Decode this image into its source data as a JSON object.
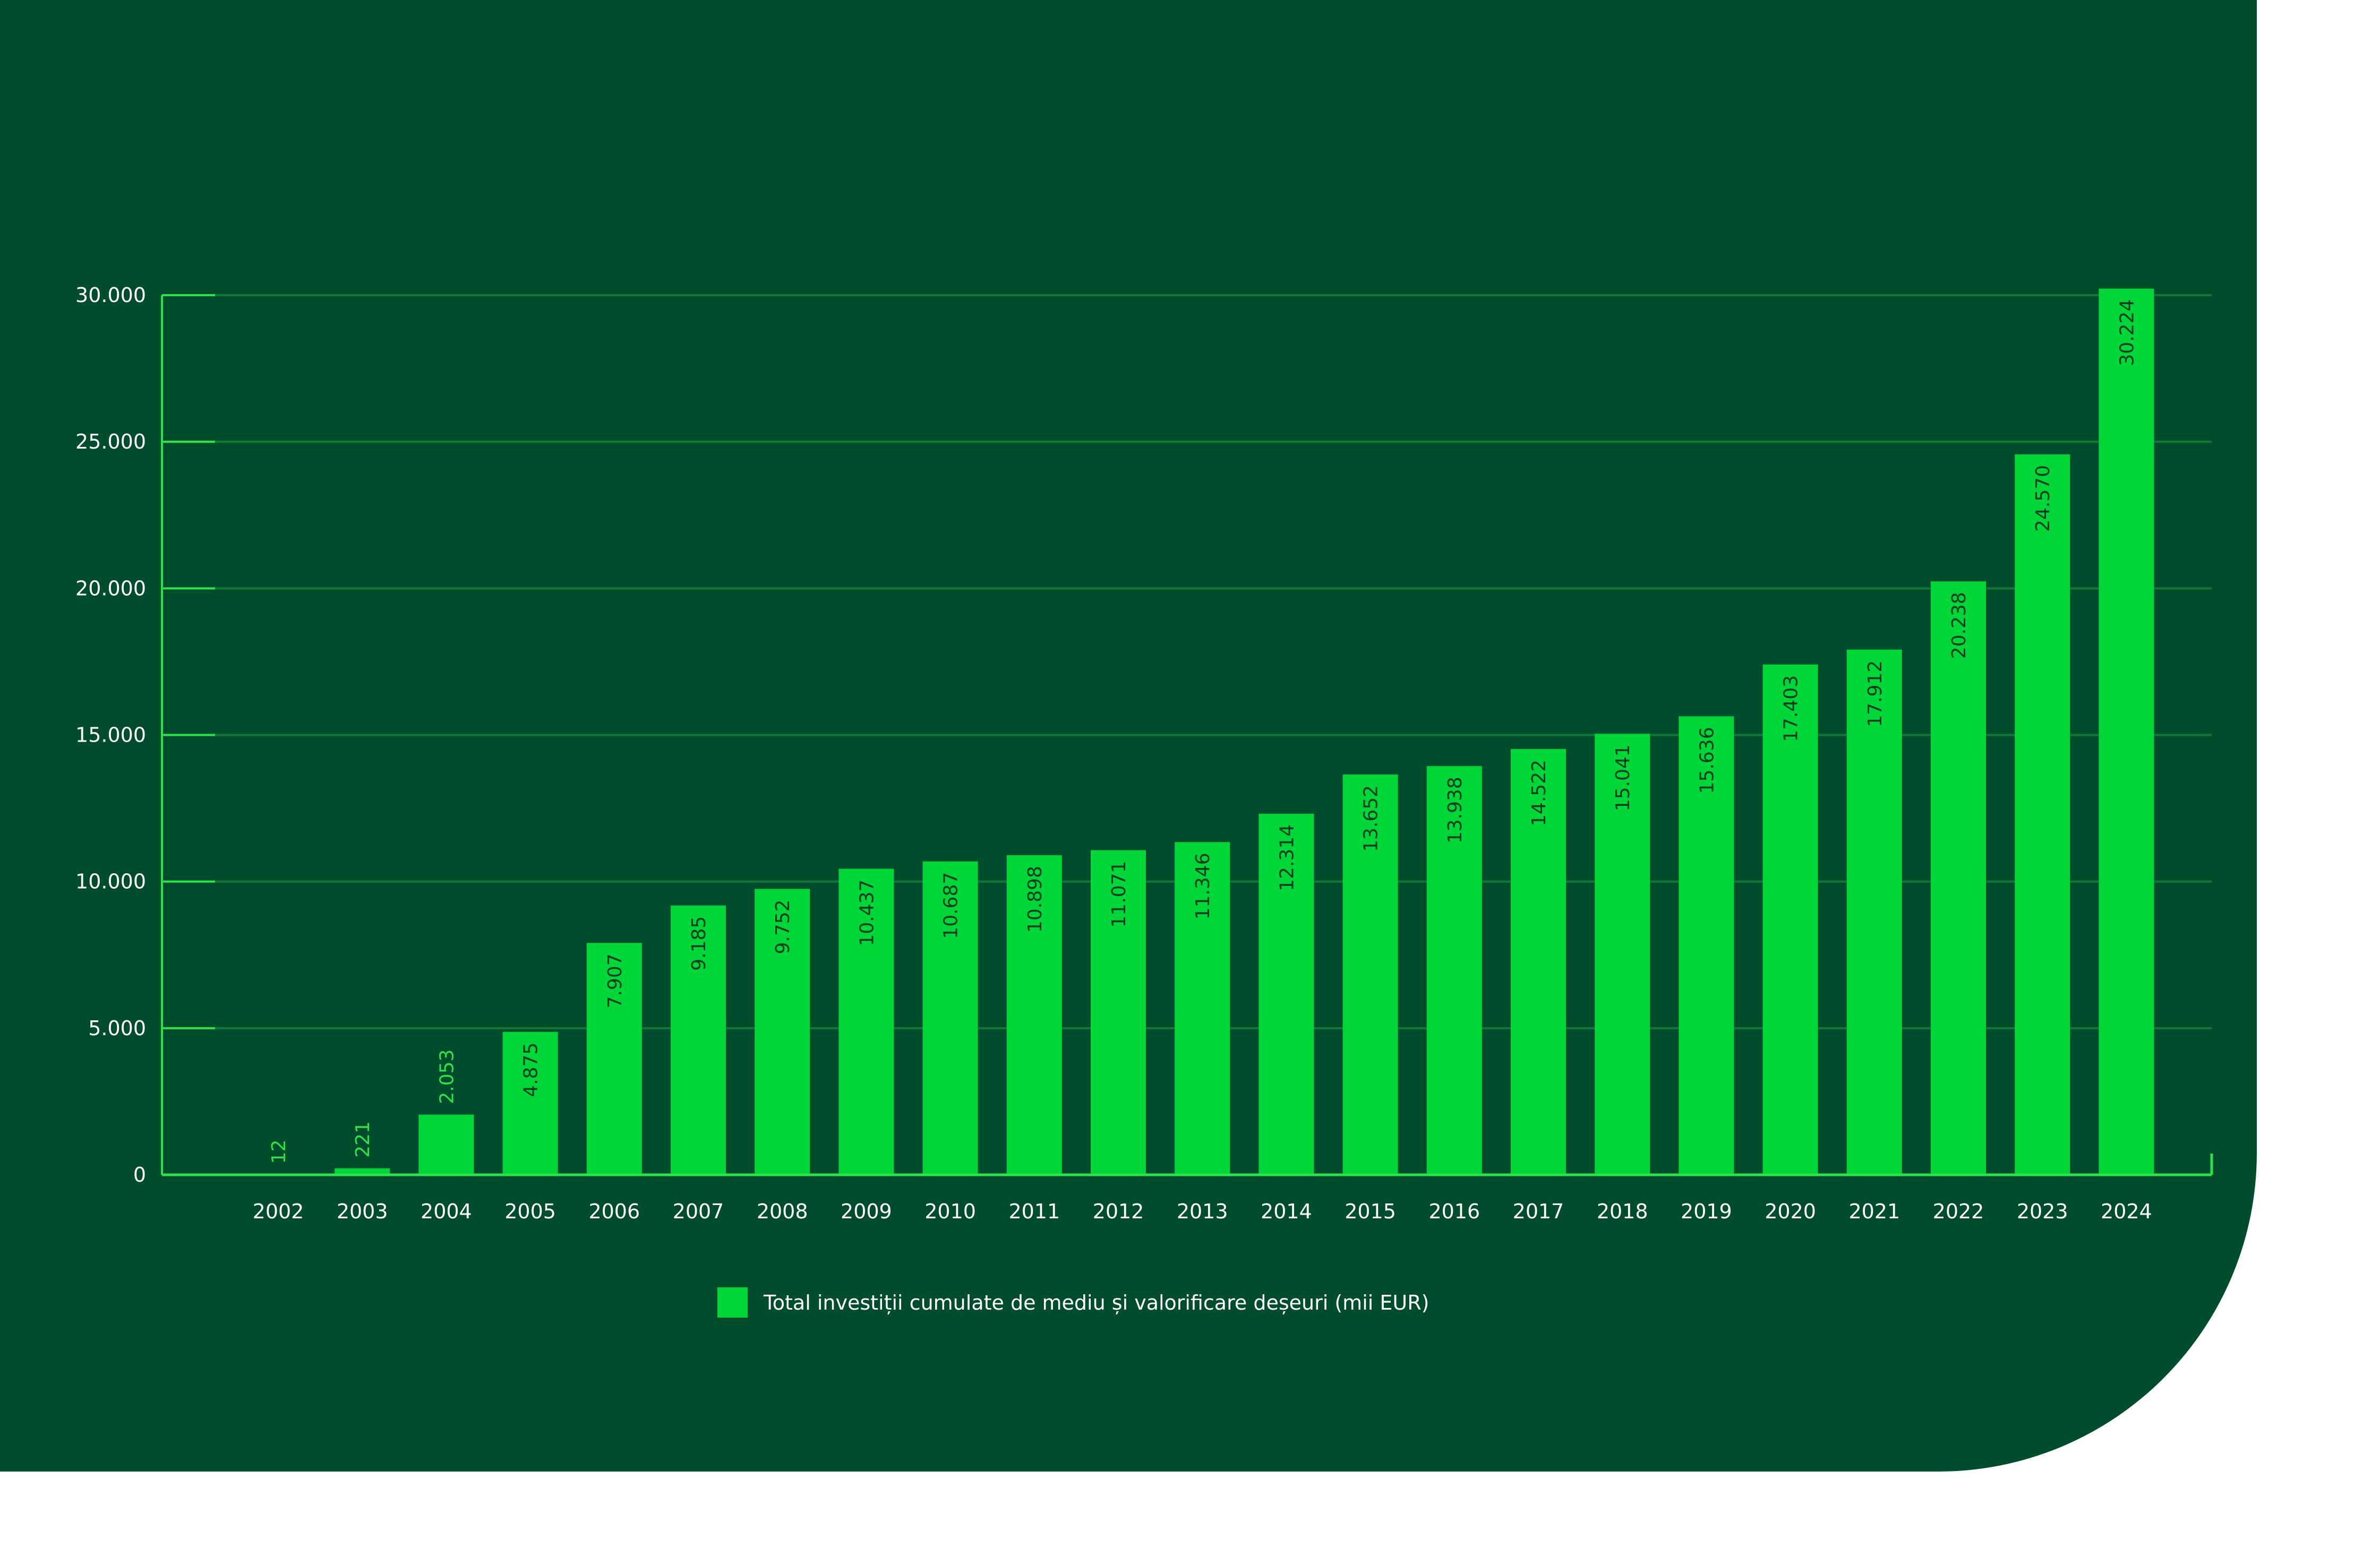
{
  "colors": {
    "background": "#004d2e",
    "bar": "#00d637",
    "gridline": "#0f7a35",
    "axis": "#2ee24a",
    "tick_label": "#ffffff",
    "inside_label": "#0a3a1f",
    "outside_label": "#2ee24a"
  },
  "chart_data": {
    "type": "bar",
    "categories": [
      "2002",
      "2003",
      "2004",
      "2005",
      "2006",
      "2007",
      "2008",
      "2009",
      "2010",
      "2011",
      "2012",
      "2013",
      "2014",
      "2015",
      "2016",
      "2017",
      "2018",
      "2019",
      "2020",
      "2021",
      "2022",
      "2023",
      "2024"
    ],
    "series": [
      {
        "name": "Total investiții cumulate de mediu și valorificare deșeuri (mii EUR)",
        "values": [
          12,
          221,
          2053,
          4875,
          7907,
          9185,
          9752,
          10437,
          10687,
          10898,
          11071,
          11346,
          12314,
          13652,
          13938,
          14522,
          15041,
          15636,
          17403,
          17912,
          20238,
          24570,
          30224
        ],
        "labels": [
          "12",
          "221",
          "2.053",
          "4.875",
          "7.907",
          "9.185",
          "9.752",
          "10.437",
          "10.687",
          "10.898",
          "11.071",
          "11.346",
          "12.314",
          "13.652",
          "13.938",
          "14.522",
          "15.041",
          "15.636",
          "17.403",
          "17.912",
          "20.238",
          "24.570",
          "30.224"
        ]
      }
    ],
    "yticks": [
      0,
      5000,
      10000,
      15000,
      20000,
      25000,
      30000
    ],
    "ytick_labels": [
      "0",
      "5.000",
      "10.000",
      "15.000",
      "20.000",
      "25.000",
      "30.000"
    ],
    "ylim": [
      0,
      30000
    ],
    "grid": true,
    "legend_position": "bottom-center",
    "title": "",
    "xlabel": "",
    "ylabel": ""
  }
}
